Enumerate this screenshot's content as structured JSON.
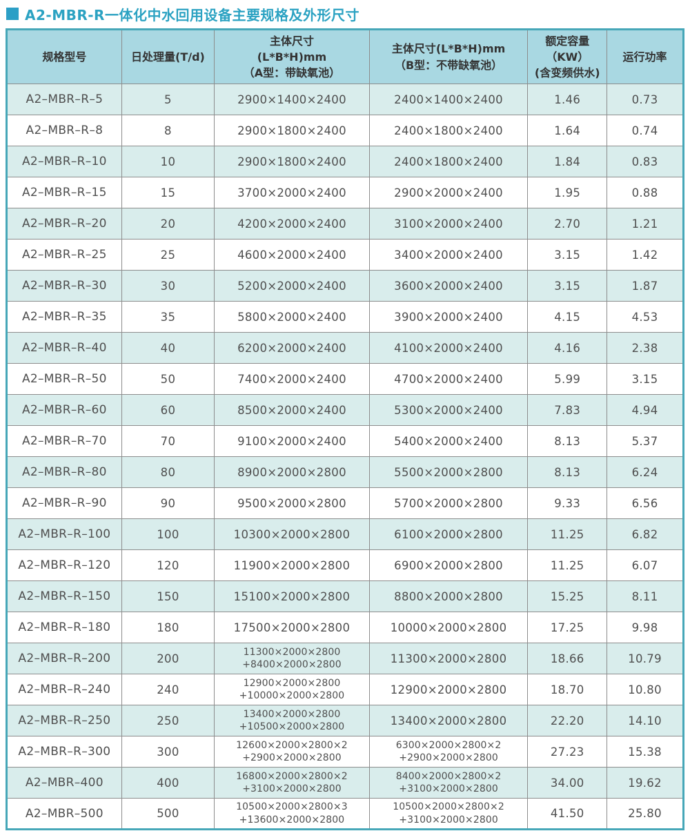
{
  "page": {
    "title": "A2-MBR-R一体化中水回用设备主要规格及外形尺寸"
  },
  "theme": {
    "accent": "#2ba2c2",
    "bullet": "#2c9fc6",
    "table_border": "#46a7b8",
    "header_bg": "#a9d8e2",
    "stripe_bg": "#d9edec",
    "grid_line": "#8c8c8c",
    "text": "#4f4f4f"
  },
  "table": {
    "columns": [
      {
        "key": "model",
        "label_lines": [
          "规格型号"
        ]
      },
      {
        "key": "capacity",
        "label_lines": [
          "日处理量(T/d)"
        ]
      },
      {
        "key": "dim_a",
        "label_lines": [
          "主体尺寸",
          "(L*B*H)mm",
          "（A型：带缺氧池）"
        ]
      },
      {
        "key": "dim_b",
        "label_lines": [
          "主体尺寸(L*B*H)mm",
          "（B型：不带缺氧池）"
        ]
      },
      {
        "key": "rated",
        "label_lines": [
          "额定容量",
          "（KW）",
          "(含变频供水)"
        ]
      },
      {
        "key": "power",
        "label_lines": [
          "运行功率"
        ]
      }
    ],
    "rows": [
      {
        "model": "A2–MBR–R–5",
        "capacity": "5",
        "dim_a": [
          "2900×1400×2400"
        ],
        "dim_b": [
          "2400×1400×2400"
        ],
        "rated": "1.46",
        "power": "0.73"
      },
      {
        "model": "A2–MBR–R–8",
        "capacity": "8",
        "dim_a": [
          "2900×1800×2400"
        ],
        "dim_b": [
          "2400×1800×2400"
        ],
        "rated": "1.64",
        "power": "0.74"
      },
      {
        "model": "A2–MBR–R–10",
        "capacity": "10",
        "dim_a": [
          "2900×1800×2400"
        ],
        "dim_b": [
          "2400×1800×2400"
        ],
        "rated": "1.84",
        "power": "0.83"
      },
      {
        "model": "A2–MBR–R–15",
        "capacity": "15",
        "dim_a": [
          "3700×2000×2400"
        ],
        "dim_b": [
          "2900×2000×2400"
        ],
        "rated": "1.95",
        "power": "0.88"
      },
      {
        "model": "A2–MBR–R–20",
        "capacity": "20",
        "dim_a": [
          "4200×2000×2400"
        ],
        "dim_b": [
          "3100×2000×2400"
        ],
        "rated": "2.70",
        "power": "1.21"
      },
      {
        "model": "A2–MBR–R–25",
        "capacity": "25",
        "dim_a": [
          "4600×2000×2400"
        ],
        "dim_b": [
          "3400×2000×2400"
        ],
        "rated": "3.15",
        "power": "1.42"
      },
      {
        "model": "A2–MBR–R–30",
        "capacity": "30",
        "dim_a": [
          "5200×2000×2400"
        ],
        "dim_b": [
          "3600×2000×2400"
        ],
        "rated": "3.15",
        "power": "1.87"
      },
      {
        "model": "A2–MBR–R–35",
        "capacity": "35",
        "dim_a": [
          "5800×2000×2400"
        ],
        "dim_b": [
          "3900×2000×2400"
        ],
        "rated": "4.15",
        "power": "4.53"
      },
      {
        "model": "A2–MBR–R–40",
        "capacity": "40",
        "dim_a": [
          "6200×2000×2400"
        ],
        "dim_b": [
          "4100×2000×2400"
        ],
        "rated": "4.16",
        "power": "2.38"
      },
      {
        "model": "A2–MBR–R–50",
        "capacity": "50",
        "dim_a": [
          "7400×2000×2400"
        ],
        "dim_b": [
          "4700×2000×2400"
        ],
        "rated": "5.99",
        "power": "3.15"
      },
      {
        "model": "A2–MBR–R–60",
        "capacity": "60",
        "dim_a": [
          "8500×2000×2400"
        ],
        "dim_b": [
          "5300×2000×2400"
        ],
        "rated": "7.83",
        "power": "4.94"
      },
      {
        "model": "A2–MBR–R–70",
        "capacity": "70",
        "dim_a": [
          "9100×2000×2400"
        ],
        "dim_b": [
          "5400×2000×2400"
        ],
        "rated": "8.13",
        "power": "5.37"
      },
      {
        "model": "A2–MBR–R–80",
        "capacity": "80",
        "dim_a": [
          "8900×2000×2800"
        ],
        "dim_b": [
          "5500×2000×2800"
        ],
        "rated": "8.13",
        "power": "6.24"
      },
      {
        "model": "A2–MBR–R–90",
        "capacity": "90",
        "dim_a": [
          "9500×2000×2800"
        ],
        "dim_b": [
          "5700×2000×2800"
        ],
        "rated": "9.33",
        "power": "6.56"
      },
      {
        "model": "A2–MBR–R–100",
        "capacity": "100",
        "dim_a": [
          "10300×2000×2800"
        ],
        "dim_b": [
          "6100×2000×2800"
        ],
        "rated": "11.25",
        "power": "6.82"
      },
      {
        "model": "A2–MBR–R–120",
        "capacity": "120",
        "dim_a": [
          "11900×2000×2800"
        ],
        "dim_b": [
          "6900×2000×2800"
        ],
        "rated": "11.25",
        "power": "6.07"
      },
      {
        "model": "A2–MBR–R–150",
        "capacity": "150",
        "dim_a": [
          "15100×2000×2800"
        ],
        "dim_b": [
          "8800×2000×2800"
        ],
        "rated": "15.25",
        "power": "8.11"
      },
      {
        "model": "A2–MBR–R–180",
        "capacity": "180",
        "dim_a": [
          "17500×2000×2800"
        ],
        "dim_b": [
          "10000×2000×2800"
        ],
        "rated": "17.25",
        "power": "9.98"
      },
      {
        "model": "A2–MBR–R–200",
        "capacity": "200",
        "dim_a": [
          "11300×2000×2800",
          "+8400×2000×2800"
        ],
        "dim_b": [
          "11300×2000×2800"
        ],
        "rated": "18.66",
        "power": "10.79"
      },
      {
        "model": "A2–MBR–R–240",
        "capacity": "240",
        "dim_a": [
          "12900×2000×2800",
          "+10000×2000×2800"
        ],
        "dim_b": [
          "12900×2000×2800"
        ],
        "rated": "18.70",
        "power": "10.80"
      },
      {
        "model": "A2–MBR–R–250",
        "capacity": "250",
        "dim_a": [
          "13400×2000×2800",
          "+10500×2000×2800"
        ],
        "dim_b": [
          "13400×2000×2800"
        ],
        "rated": "22.20",
        "power": "14.10"
      },
      {
        "model": "A2–MBR–R–300",
        "capacity": "300",
        "dim_a": [
          "12600×2000×2800×2",
          "+2900×2000×2800"
        ],
        "dim_b": [
          "6300×2000×2800×2",
          "+2900×2000×2800"
        ],
        "rated": "27.23",
        "power": "15.38"
      },
      {
        "model": "A2–MBR–400",
        "capacity": "400",
        "dim_a": [
          "16800×2000×2800×2",
          "+3100×2000×2800"
        ],
        "dim_b": [
          "8400×2000×2800×2",
          "+3100×2000×2800"
        ],
        "rated": "34.00",
        "power": "19.62"
      },
      {
        "model": "A2–MBR–500",
        "capacity": "500",
        "dim_a": [
          "10500×2000×2800×3",
          "+13600×2000×2800"
        ],
        "dim_b": [
          "10500×2000×2800×2",
          "+3100×2000×2800"
        ],
        "rated": "41.50",
        "power": "25.80"
      }
    ]
  }
}
